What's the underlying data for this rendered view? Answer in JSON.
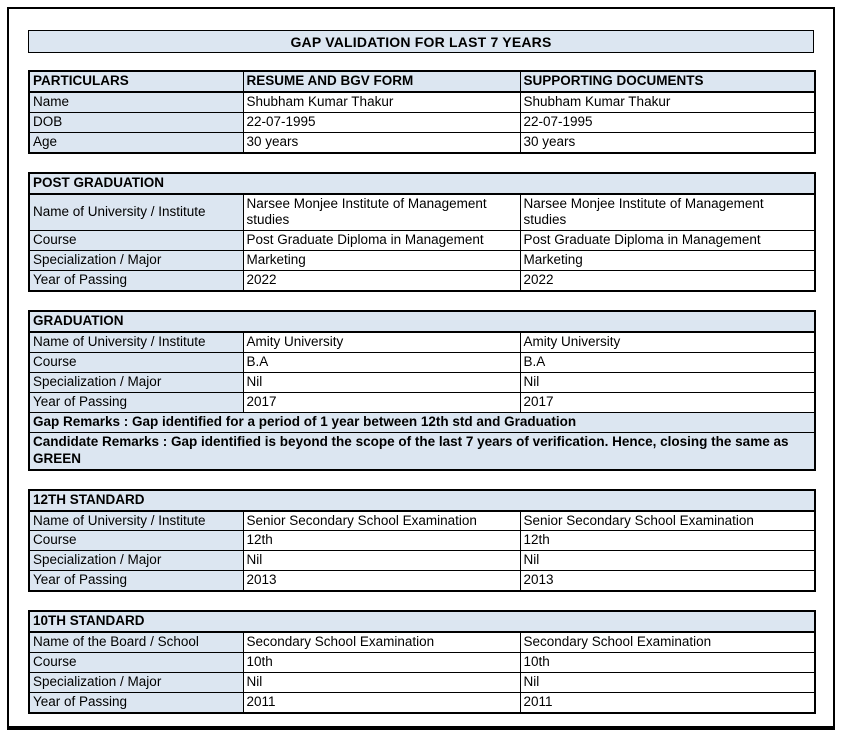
{
  "title": "GAP VALIDATION FOR LAST 7 YEARS",
  "colors": {
    "fill": "#dce6f1",
    "border": "#000000"
  },
  "particulars": {
    "headers": [
      "PARTICULARS",
      "RESUME AND BGV FORM",
      "SUPPORTING DOCUMENTS"
    ],
    "rows": [
      {
        "label": "Name",
        "resume": "Shubham Kumar Thakur",
        "supporting": "Shubham Kumar Thakur"
      },
      {
        "label": "DOB",
        "resume": "22-07-1995",
        "supporting": "22-07-1995"
      },
      {
        "label": "Age",
        "resume": "30 years",
        "supporting": "30 years"
      }
    ]
  },
  "sections": [
    {
      "heading": "POST GRADUATION",
      "rows": [
        {
          "label": "Name of University / Institute",
          "resume": "Narsee Monjee Institute of Management studies",
          "supporting": "Narsee Monjee Institute of Management studies"
        },
        {
          "label": "Course",
          "resume": "Post Graduate Diploma in Management",
          "supporting": "Post Graduate Diploma in Management"
        },
        {
          "label": "Specialization / Major",
          "resume": "Marketing",
          "supporting": "Marketing"
        },
        {
          "label": "Year of Passing",
          "resume": "2022",
          "supporting": "2022"
        }
      ]
    },
    {
      "heading": "GRADUATION",
      "rows": [
        {
          "label": "Name of University / Institute",
          "resume": "Amity University",
          "supporting": "Amity University"
        },
        {
          "label": "Course",
          "resume": "B.A",
          "supporting": "B.A"
        },
        {
          "label": "Specialization / Major",
          "resume": "Nil",
          "supporting": "Nil"
        },
        {
          "label": "Year of Passing",
          "resume": "2017",
          "supporting": "2017"
        }
      ],
      "remarks": [
        "Gap Remarks : Gap identified for a period of 1 year between 12th std and Graduation",
        "Candidate Remarks : Gap identified is beyond the scope of the last 7 years of verification. Hence, closing the same as GREEN"
      ]
    },
    {
      "heading": "12TH STANDARD",
      "rows": [
        {
          "label": "Name of University / Institute",
          "resume": "Senior Secondary School Examination",
          "supporting": "Senior Secondary School Examination"
        },
        {
          "label": "Course",
          "resume": "12th",
          "supporting": "12th"
        },
        {
          "label": "Specialization / Major",
          "resume": "Nil",
          "supporting": "Nil"
        },
        {
          "label": "Year of Passing",
          "resume": "2013",
          "supporting": "2013"
        }
      ]
    },
    {
      "heading": "10TH STANDARD",
      "rows": [
        {
          "label": "Name of the Board / School",
          "resume": "Secondary School Examination",
          "supporting": "Secondary School Examination"
        },
        {
          "label": "Course",
          "resume": "10th",
          "supporting": "10th"
        },
        {
          "label": "Specialization / Major",
          "resume": "Nil",
          "supporting": "Nil"
        },
        {
          "label": "Year of Passing",
          "resume": "2011",
          "supporting": "2011"
        }
      ]
    }
  ]
}
